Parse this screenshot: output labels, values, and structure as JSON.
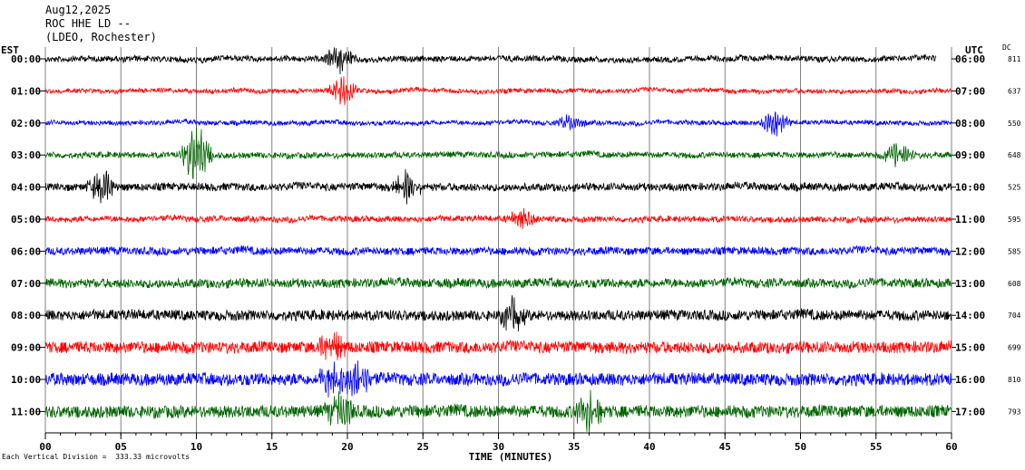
{
  "header": {
    "date": "Aug12,2025",
    "station": "ROC HHE LD --",
    "network": "(LDEO, Rochester)"
  },
  "left_zone_label": "EST",
  "right_zone_label": "UTC",
  "dc_header": "DC",
  "footer": "Each Vertical Division =  333.33 microvolts",
  "colors": {
    "black": "#000000",
    "red": "#ff0000",
    "blue": "#0000ff",
    "green": "#006400",
    "grid": "#808080"
  },
  "chart_data": {
    "type": "line",
    "title": "",
    "xlabel": "TIME (MINUTES)",
    "xlim": [
      0,
      60
    ],
    "x_ticks": [
      "00",
      "05",
      "10",
      "15",
      "20",
      "25",
      "30",
      "35",
      "40",
      "45",
      "50",
      "55",
      "60"
    ],
    "series": [
      {
        "est": "00:00",
        "utc": "06:00",
        "dc": "811",
        "color": "black",
        "amplitude": 0.45,
        "end_minute": 59
      },
      {
        "est": "01:00",
        "utc": "07:00",
        "dc": "637",
        "color": "red",
        "amplitude": 0.35,
        "end_minute": 60
      },
      {
        "est": "02:00",
        "utc": "08:00",
        "dc": "550",
        "color": "blue",
        "amplitude": 0.35,
        "end_minute": 60
      },
      {
        "est": "03:00",
        "utc": "09:00",
        "dc": "648",
        "color": "green",
        "amplitude": 0.45,
        "end_minute": 60
      },
      {
        "est": "04:00",
        "utc": "10:00",
        "dc": "525",
        "color": "black",
        "amplitude": 0.6,
        "end_minute": 60
      },
      {
        "est": "05:00",
        "utc": "11:00",
        "dc": "595",
        "color": "red",
        "amplitude": 0.45,
        "end_minute": 60
      },
      {
        "est": "06:00",
        "utc": "12:00",
        "dc": "585",
        "color": "blue",
        "amplitude": 0.6,
        "end_minute": 60
      },
      {
        "est": "07:00",
        "utc": "13:00",
        "dc": "608",
        "color": "green",
        "amplitude": 0.7,
        "end_minute": 60
      },
      {
        "est": "08:00",
        "utc": "14:00",
        "dc": "704",
        "color": "black",
        "amplitude": 0.8,
        "end_minute": 60
      },
      {
        "est": "09:00",
        "utc": "15:00",
        "dc": "699",
        "color": "red",
        "amplitude": 0.9,
        "end_minute": 60
      },
      {
        "est": "10:00",
        "utc": "16:00",
        "dc": "810",
        "color": "blue",
        "amplitude": 0.95,
        "end_minute": 60
      },
      {
        "est": "11:00",
        "utc": "17:00",
        "dc": "793",
        "color": "green",
        "amplitude": 0.95,
        "end_minute": 60
      }
    ],
    "events": [
      {
        "row": 0,
        "minute": 19.5,
        "size": 1.2
      },
      {
        "row": 1,
        "minute": 19.7,
        "size": 1.1
      },
      {
        "row": 2,
        "minute": 34.8,
        "size": 0.6
      },
      {
        "row": 2,
        "minute": 48.3,
        "size": 1.2
      },
      {
        "row": 3,
        "minute": 10.0,
        "size": 2.5
      },
      {
        "row": 3,
        "minute": 56.5,
        "size": 1.0
      },
      {
        "row": 4,
        "minute": 3.8,
        "size": 1.4
      },
      {
        "row": 4,
        "minute": 24.0,
        "size": 1.3
      },
      {
        "row": 5,
        "minute": 31.5,
        "size": 0.8
      },
      {
        "row": 8,
        "minute": 31.0,
        "size": 1.3
      },
      {
        "row": 9,
        "minute": 19.0,
        "size": 1.3
      },
      {
        "row": 10,
        "minute": 19.0,
        "size": 1.5
      },
      {
        "row": 10,
        "minute": 20.7,
        "size": 1.3
      },
      {
        "row": 11,
        "minute": 19.5,
        "size": 1.3
      },
      {
        "row": 11,
        "minute": 36.0,
        "size": 1.4
      }
    ]
  }
}
